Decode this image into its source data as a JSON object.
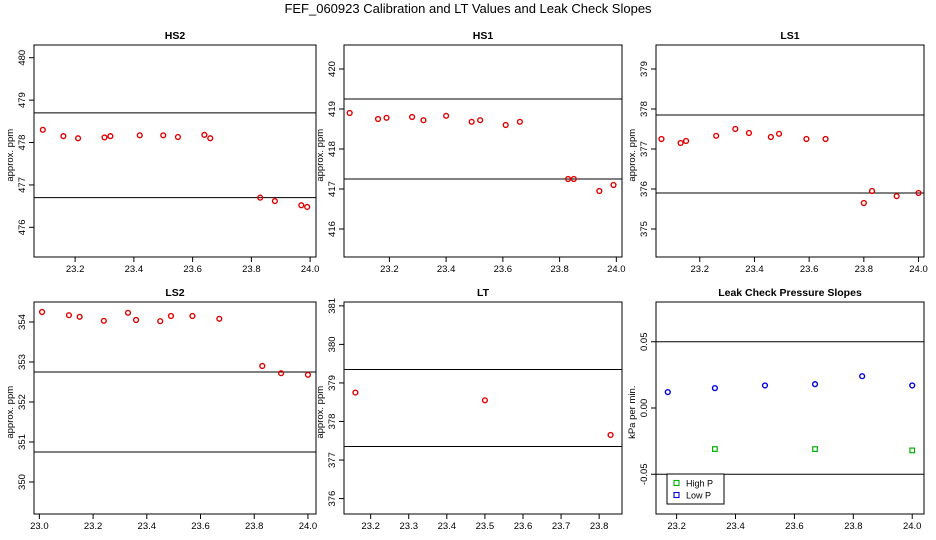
{
  "main_title": "FEF_060923  Calibration and LT Values and Leak Check Slopes",
  "colors": {
    "red": "#e00000",
    "green": "#00b000",
    "blue": "#0000dd"
  },
  "chart_data": [
    {
      "type": "scatter",
      "title": "HS2",
      "xlabel": "",
      "ylabel": "approx. ppm",
      "xlim": [
        23.06,
        24.02
      ],
      "ylim": [
        475.3,
        480.3
      ],
      "xticks": [
        23.2,
        23.4,
        23.6,
        23.8,
        24.0
      ],
      "xtick_labels": [
        "23.2",
        "23.4",
        "23.6",
        "23.8",
        "24.0"
      ],
      "yticks": [
        476,
        477,
        478,
        479,
        480
      ],
      "ytick_labels": [
        "476",
        "477",
        "478",
        "479",
        "480"
      ],
      "hlines": [
        478.7,
        476.7
      ],
      "series": [
        {
          "color": "red",
          "points": [
            [
              23.09,
              478.3
            ],
            [
              23.16,
              478.15
            ],
            [
              23.21,
              478.1
            ],
            [
              23.3,
              478.12
            ],
            [
              23.32,
              478.15
            ],
            [
              23.42,
              478.17
            ],
            [
              23.5,
              478.17
            ],
            [
              23.55,
              478.13
            ],
            [
              23.64,
              478.18
            ],
            [
              23.66,
              478.1
            ],
            [
              23.83,
              476.7
            ],
            [
              23.88,
              476.62
            ],
            [
              23.97,
              476.52
            ],
            [
              23.99,
              476.48
            ]
          ]
        }
      ]
    },
    {
      "type": "scatter",
      "title": "HS1",
      "xlabel": "",
      "ylabel": "approx. ppm",
      "xlim": [
        23.04,
        24.02
      ],
      "ylim": [
        415.3,
        420.6
      ],
      "xticks": [
        23.2,
        23.4,
        23.6,
        23.8,
        24.0
      ],
      "xtick_labels": [
        "23.2",
        "23.4",
        "23.6",
        "23.8",
        "24.0"
      ],
      "yticks": [
        416,
        417,
        418,
        419,
        420
      ],
      "ytick_labels": [
        "416",
        "417",
        "418",
        "419",
        "420"
      ],
      "hlines": [
        419.25,
        417.25
      ],
      "series": [
        {
          "color": "red",
          "points": [
            [
              23.06,
              418.9
            ],
            [
              23.16,
              418.75
            ],
            [
              23.19,
              418.78
            ],
            [
              23.28,
              418.8
            ],
            [
              23.32,
              418.72
            ],
            [
              23.4,
              418.83
            ],
            [
              23.49,
              418.68
            ],
            [
              23.52,
              418.72
            ],
            [
              23.61,
              418.6
            ],
            [
              23.66,
              418.68
            ],
            [
              23.83,
              417.25
            ],
            [
              23.85,
              417.25
            ],
            [
              23.94,
              416.95
            ],
            [
              23.99,
              417.1
            ]
          ]
        }
      ]
    },
    {
      "type": "scatter",
      "title": "LS1",
      "xlabel": "",
      "ylabel": "approx. ppm",
      "xlim": [
        23.04,
        24.02
      ],
      "ylim": [
        374.3,
        379.6
      ],
      "xticks": [
        23.2,
        23.4,
        23.6,
        23.8,
        24.0
      ],
      "xtick_labels": [
        "23.2",
        "23.4",
        "23.6",
        "23.8",
        "24.0"
      ],
      "yticks": [
        375,
        376,
        377,
        378,
        379
      ],
      "ytick_labels": [
        "375",
        "376",
        "377",
        "378",
        "379"
      ],
      "hlines": [
        377.85,
        375.9
      ],
      "series": [
        {
          "color": "red",
          "points": [
            [
              23.06,
              377.25
            ],
            [
              23.13,
              377.15
            ],
            [
              23.15,
              377.2
            ],
            [
              23.26,
              377.33
            ],
            [
              23.33,
              377.5
            ],
            [
              23.38,
              377.4
            ],
            [
              23.46,
              377.3
            ],
            [
              23.49,
              377.38
            ],
            [
              23.59,
              377.25
            ],
            [
              23.66,
              377.25
            ],
            [
              23.8,
              375.65
            ],
            [
              23.83,
              375.95
            ],
            [
              23.92,
              375.82
            ],
            [
              24.0,
              375.9
            ]
          ]
        }
      ]
    },
    {
      "type": "scatter",
      "title": "LS2",
      "xlabel": "",
      "ylabel": "approx. ppm",
      "xlim": [
        22.98,
        24.03
      ],
      "ylim": [
        349.2,
        354.5
      ],
      "xticks": [
        23.0,
        23.2,
        23.4,
        23.6,
        23.8,
        24.0
      ],
      "xtick_labels": [
        "23.0",
        "23.2",
        "23.4",
        "23.6",
        "23.8",
        "24.0"
      ],
      "yticks": [
        350,
        351,
        352,
        353,
        354
      ],
      "ytick_labels": [
        "350",
        "351",
        "352",
        "353",
        "354"
      ],
      "hlines": [
        352.75,
        350.75
      ],
      "series": [
        {
          "color": "red",
          "points": [
            [
              23.01,
              354.25
            ],
            [
              23.11,
              354.17
            ],
            [
              23.15,
              354.13
            ],
            [
              23.24,
              354.03
            ],
            [
              23.33,
              354.23
            ],
            [
              23.36,
              354.05
            ],
            [
              23.45,
              354.02
            ],
            [
              23.49,
              354.15
            ],
            [
              23.57,
              354.15
            ],
            [
              23.67,
              354.08
            ],
            [
              23.83,
              352.9
            ],
            [
              23.9,
              352.72
            ],
            [
              24.0,
              352.68
            ]
          ]
        }
      ]
    },
    {
      "type": "scatter",
      "title": "LT",
      "xlabel": "",
      "ylabel": "approx. ppm",
      "xlim": [
        23.13,
        23.86
      ],
      "ylim": [
        375.6,
        381.1
      ],
      "xticks": [
        23.2,
        23.3,
        23.4,
        23.5,
        23.6,
        23.7,
        23.8
      ],
      "xtick_labels": [
        "23.2",
        "23.3",
        "23.4",
        "23.5",
        "23.6",
        "23.7",
        "23.8"
      ],
      "yticks": [
        376,
        377,
        378,
        379,
        380,
        381
      ],
      "ytick_labels": [
        "376",
        "377",
        "378",
        "379",
        "380",
        "381"
      ],
      "hlines": [
        379.35,
        377.35
      ],
      "series": [
        {
          "color": "red",
          "points": [
            [
              23.16,
              378.75
            ],
            [
              23.5,
              378.55
            ],
            [
              23.83,
              377.65
            ]
          ]
        }
      ]
    },
    {
      "type": "scatter",
      "title": "Leak Check Pressure Slopes",
      "xlabel": "",
      "ylabel": "kPa per min.",
      "xlim": [
        23.13,
        24.04
      ],
      "ylim": [
        -0.08,
        0.08
      ],
      "xticks": [
        23.2,
        23.4,
        23.6,
        23.8,
        24.0
      ],
      "xtick_labels": [
        "23.2",
        "23.4",
        "23.6",
        "23.8",
        "24.0"
      ],
      "yticks": [
        -0.05,
        0.0,
        0.05
      ],
      "ytick_labels": [
        "-0.05",
        "0.00",
        "0.05"
      ],
      "hlines": [
        0.05,
        -0.05
      ],
      "legend": {
        "position": "bottom-left",
        "entries": [
          {
            "label": "High P",
            "color": "green"
          },
          {
            "label": "Low P",
            "color": "blue"
          }
        ]
      },
      "series": [
        {
          "name": "High P",
          "color": "green",
          "marker": "square",
          "points": [
            [
              23.33,
              -0.031
            ],
            [
              23.67,
              -0.031
            ],
            [
              24.0,
              -0.032
            ]
          ]
        },
        {
          "name": "Low P",
          "color": "blue",
          "marker": "circle",
          "points": [
            [
              23.17,
              0.012
            ],
            [
              23.33,
              0.015
            ],
            [
              23.5,
              0.017
            ],
            [
              23.67,
              0.018
            ],
            [
              23.83,
              0.024
            ],
            [
              24.0,
              0.017
            ]
          ]
        }
      ]
    }
  ]
}
